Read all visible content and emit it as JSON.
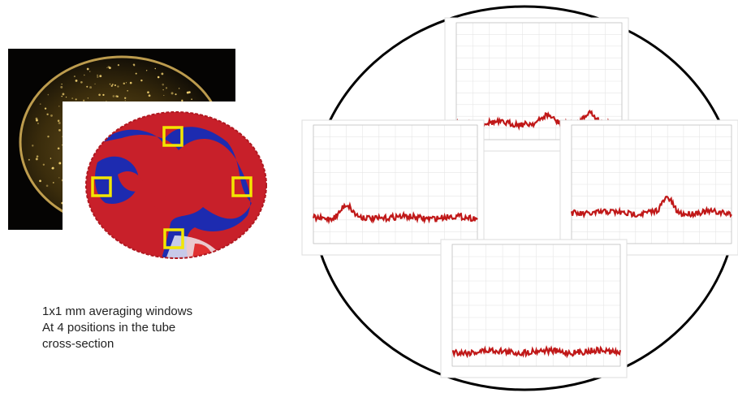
{
  "caption": {
    "lines": [
      "1x1 mm averaging windows",
      "At 4 positions in the tube",
      "cross-section"
    ]
  }
}
